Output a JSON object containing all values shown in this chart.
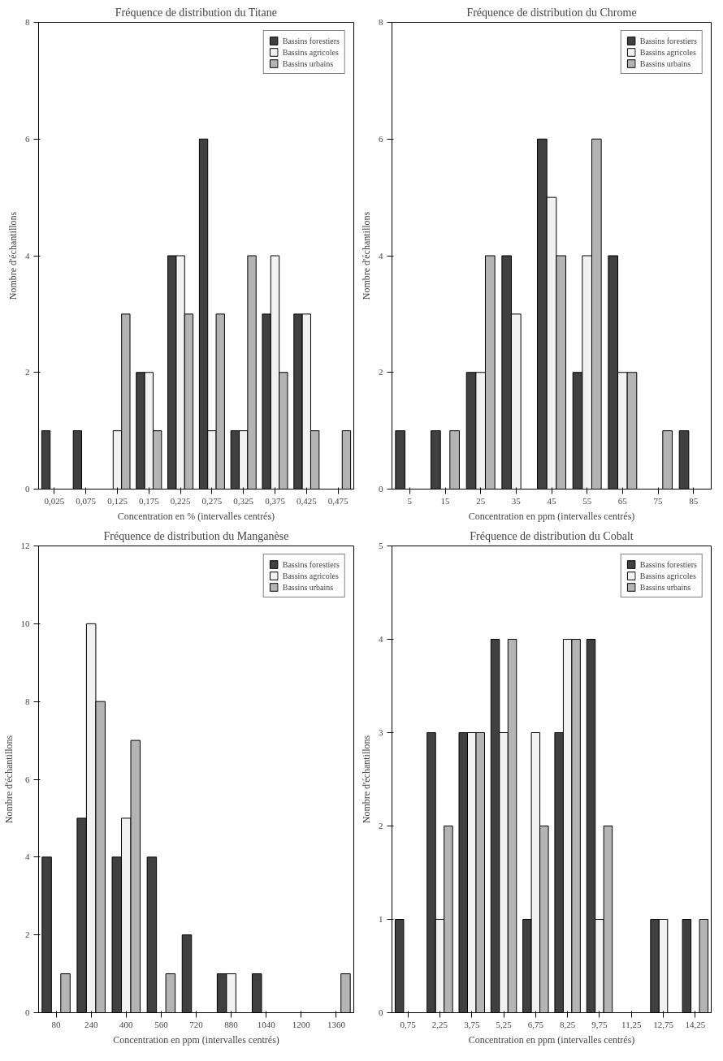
{
  "chart_data": [
    {
      "type": "bar",
      "title": "Fréquence de distribution du Titane",
      "xlabel": "Concentration en % (intervalles centrés)",
      "ylabel": "Nombre d'échantillons",
      "legend": "top right",
      "categories": [
        "0,025",
        "0,075",
        "0,125",
        "0,175",
        "0,225",
        "0,275",
        "0,325",
        "0,375",
        "0,425",
        "0,475"
      ],
      "ylim": [
        0,
        8
      ],
      "yticks": [
        0,
        2,
        4,
        6,
        8
      ],
      "series": [
        {
          "name": "Bassins forestiers",
          "color": "#404040",
          "values": [
            1,
            1,
            0,
            2,
            4,
            6,
            1,
            3,
            3,
            0
          ]
        },
        {
          "name": "Bassins agricoles",
          "color": "#f2f2f2",
          "values": [
            0,
            0,
            1,
            2,
            4,
            1,
            1,
            4,
            3,
            0
          ]
        },
        {
          "name": "Bassins urbains",
          "color": "#b4b4b4",
          "values": [
            0,
            0,
            3,
            1,
            3,
            3,
            4,
            2,
            1,
            1
          ]
        }
      ]
    },
    {
      "type": "bar",
      "title": "Fréquence de distribution du Chrome",
      "xlabel": "Concentration en ppm (intervalles centrés)",
      "ylabel": "Nombre d'échantillons",
      "legend": "top right",
      "categories": [
        "5",
        "15",
        "25",
        "35",
        "45",
        "55",
        "65",
        "75",
        "85"
      ],
      "ylim": [
        0,
        8
      ],
      "yticks": [
        0,
        2,
        4,
        6,
        8
      ],
      "series": [
        {
          "name": "Bassins forestiers",
          "color": "#404040",
          "values": [
            1,
            1,
            2,
            4,
            6,
            2,
            4,
            0,
            1
          ]
        },
        {
          "name": "Bassins agricoles",
          "color": "#f2f2f2",
          "values": [
            0,
            0,
            2,
            3,
            5,
            4,
            2,
            0,
            0
          ]
        },
        {
          "name": "Bassins urbains",
          "color": "#b4b4b4",
          "values": [
            0,
            1,
            4,
            0,
            4,
            6,
            2,
            1,
            0
          ]
        }
      ]
    },
    {
      "type": "bar",
      "title": "Fréquence de distribution du Manganèse",
      "xlabel": "Concentration en ppm (intervalles centrés)",
      "ylabel": "Nombre d'échantillons",
      "legend": "top right",
      "categories": [
        "80",
        "240",
        "400",
        "560",
        "720",
        "880",
        "1040",
        "1200",
        "1360"
      ],
      "ylim": [
        0,
        12
      ],
      "yticks": [
        0,
        2,
        4,
        6,
        8,
        10,
        12
      ],
      "series": [
        {
          "name": "Bassins forestiers",
          "color": "#404040",
          "values": [
            4,
            5,
            4,
            4,
            2,
            1,
            1,
            0,
            0
          ]
        },
        {
          "name": "Bassins agricoles",
          "color": "#f2f2f2",
          "values": [
            0,
            10,
            5,
            0,
            0,
            1,
            0,
            0,
            0
          ]
        },
        {
          "name": "Bassins urbains",
          "color": "#b4b4b4",
          "values": [
            1,
            8,
            7,
            1,
            0,
            0,
            0,
            0,
            1
          ]
        }
      ]
    },
    {
      "type": "bar",
      "title": "Fréquence de distribution du Cobalt",
      "xlabel": "Concentration en ppm (intervalles centrés)",
      "ylabel": "Nombre d'échantillons",
      "legend": "top right",
      "categories": [
        "0,75",
        "2,25",
        "3,75",
        "5,25",
        "6,75",
        "8,25",
        "9,75",
        "11,25",
        "12,75",
        "14,25"
      ],
      "ylim": [
        0,
        5
      ],
      "yticks": [
        0,
        1,
        2,
        3,
        4,
        5
      ],
      "series": [
        {
          "name": "Bassins forestiers",
          "color": "#404040",
          "values": [
            1,
            3,
            3,
            4,
            1,
            3,
            4,
            0,
            1,
            1
          ]
        },
        {
          "name": "Bassins agricoles",
          "color": "#f2f2f2",
          "values": [
            0,
            1,
            3,
            3,
            3,
            4,
            1,
            0,
            1,
            0
          ]
        },
        {
          "name": "Bassins urbains",
          "color": "#b4b4b4",
          "values": [
            0,
            2,
            3,
            4,
            2,
            4,
            2,
            0,
            0,
            1
          ]
        }
      ]
    }
  ]
}
